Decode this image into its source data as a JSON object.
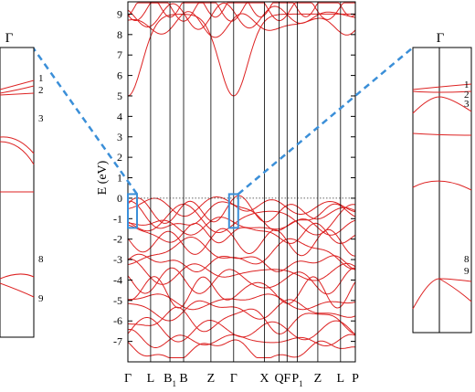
{
  "chart_data": {
    "type": "line",
    "ylabel": "E (eV)",
    "ylim": [
      -8,
      9.6
    ],
    "yticks": [
      -7,
      -6,
      -5,
      -4,
      -3,
      -2,
      -1,
      0,
      1,
      2,
      3,
      4,
      5,
      6,
      7,
      8,
      9
    ],
    "fermi_level": 0,
    "x_path": [
      "Γ",
      "L",
      "B1",
      "B",
      "Z",
      "Γ",
      "X",
      "Q",
      "F",
      "P1",
      "Z",
      "L",
      "P"
    ],
    "x_labels": [
      {
        "main": "Γ",
        "sub": ""
      },
      {
        "main": "L",
        "sub": ""
      },
      {
        "main": "B",
        "sub": "1"
      },
      {
        "main": "B",
        "sub": ""
      },
      {
        "main": "Z",
        "sub": ""
      },
      {
        "main": "Γ",
        "sub": ""
      },
      {
        "main": "X",
        "sub": ""
      },
      {
        "main": "Q",
        "sub": ""
      },
      {
        "main": "F",
        "sub": ""
      },
      {
        "main": "P",
        "sub": "1"
      },
      {
        "main": "Z",
        "sub": ""
      },
      {
        "main": "L",
        "sub": ""
      },
      {
        "main": "P",
        "sub": ""
      }
    ],
    "x_positions": [
      0,
      1.0,
      1.85,
      2.45,
      3.65,
      4.65,
      6.0,
      6.65,
      7.0,
      7.45,
      8.35,
      9.35,
      10.0
    ],
    "series_color": "#dd2222",
    "conduction_band_minimum": {
      "k": "Γ",
      "energy": 5.0
    },
    "valence_band_maximum": {
      "k": "Γ",
      "energy": -0.1
    },
    "band_anchor_energies": {
      "conduction": [
        5.0,
        8.5,
        8.9,
        9.3,
        9.5
      ],
      "valence": [
        -0.1,
        -0.35,
        -0.6,
        -0.9,
        -1.2,
        -1.6,
        -2.0,
        -2.5,
        -3.0,
        -3.5,
        -3.9,
        -4.4,
        -4.9,
        -5.3,
        -5.8,
        -6.3,
        -6.8,
        -7.3
      ]
    },
    "zoom_insets": [
      {
        "title": "Γ",
        "location": "left",
        "band_labels": [
          "1",
          "2",
          "3",
          "8",
          "9"
        ]
      },
      {
        "title": "Γ",
        "location": "right",
        "band_labels": [
          "1",
          "2",
          "3",
          "8",
          "9"
        ]
      }
    ],
    "highlight_color": "#3b8fd8"
  }
}
